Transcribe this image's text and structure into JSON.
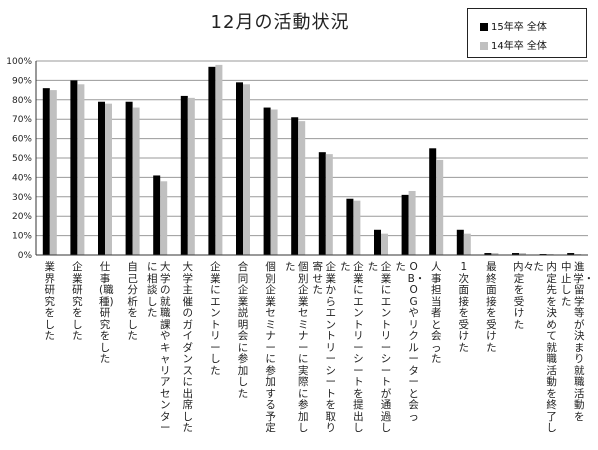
{
  "chart_data": {
    "type": "bar",
    "title": "12月の活動状況",
    "xlabel": "",
    "ylabel": "",
    "ylim": [
      0,
      100
    ],
    "y_ticks": [
      "0%",
      "10%",
      "20%",
      "30%",
      "40%",
      "50%",
      "60%",
      "70%",
      "80%",
      "90%",
      "100%"
    ],
    "grid": true,
    "legend_position": "top-right",
    "categories": [
      "業界研究をした",
      "企業研究をした",
      "仕事(職種)研究をした",
      "自己分析をした",
      "大学の就職課やキャリアセンターに相談した",
      "大学主催のガイダンスに出席した",
      "企業にエントリーした",
      "合同企業説明会に参加した",
      "個別企業セミナーに参加する予定",
      "個別企業セミナーに実際に参加した",
      "企業からエントリーシートを取り寄せた",
      "企業にエントリーシートを提出した",
      "企業にエントリーシートが通過した",
      "OB・OGやリクルーターと会った",
      "人事担当者と会った",
      "1次面接を受けた",
      "最終面接を受けた",
      "内々定を受けた",
      "内定先を決めて就職活動を終了した",
      "進学・留学等が決まり就職活動を中止した"
    ],
    "series": [
      {
        "name": "15年卒 全体",
        "color": "#000000",
        "values": [
          86,
          90,
          79,
          79,
          41,
          82,
          97,
          89,
          76,
          71,
          53,
          29,
          13,
          31,
          55,
          13,
          1,
          1,
          0.5,
          1
        ]
      },
      {
        "name": "14年卒 全体",
        "color": "#c0c0c0",
        "values": [
          85,
          88,
          78,
          76,
          38,
          81,
          98,
          88,
          75,
          69,
          52,
          28,
          11,
          33,
          49,
          11,
          1,
          1,
          0.5,
          0.5
        ]
      }
    ]
  }
}
